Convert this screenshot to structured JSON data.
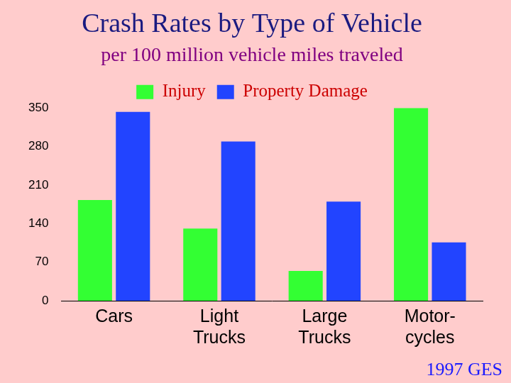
{
  "chart_data": {
    "type": "bar",
    "title": "Crash Rates by Type of Vehicle",
    "subtitle": "per 100 million vehicle miles traveled",
    "source": "1997 GES",
    "categories": [
      "Cars",
      [
        "Light",
        "Trucks"
      ],
      [
        "Large",
        "Trucks"
      ],
      [
        "Motor-",
        "cycles"
      ]
    ],
    "series": [
      {
        "name": "Injury",
        "color": "#33ff33",
        "values": [
          183,
          131,
          54,
          350
        ]
      },
      {
        "name": "Property Damage",
        "color": "#2244ff",
        "values": [
          343,
          289,
          180,
          106
        ]
      }
    ],
    "ylim": [
      0,
      350
    ],
    "yticks": [
      0,
      70,
      140,
      210,
      280,
      350
    ],
    "grid": false,
    "legend": "top"
  }
}
